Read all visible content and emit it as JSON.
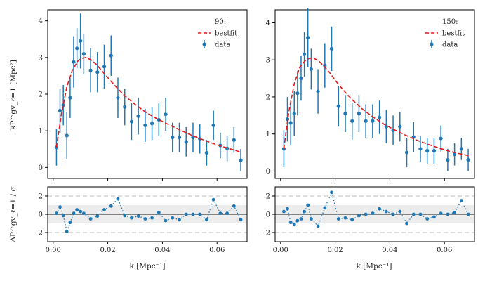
{
  "figure": {
    "ylabel_top": "kP^gv_ℓ=1 [Mpc²]",
    "ylabel_bottom": "ΔP^gv_ℓ=1 / σ",
    "xlabel": "k [Mpc⁻¹]"
  },
  "chart_data": [
    {
      "type": "scatter",
      "panel": "left-top",
      "legend_title": "90:",
      "legend": [
        "bestfit",
        "data"
      ],
      "legend_placement": "top-right",
      "xlim": [
        -0.002,
        0.071
      ],
      "ylim": [
        -0.3,
        4.3
      ],
      "xticks": [
        0.0,
        0.02,
        0.04,
        0.06
      ],
      "yticks": [
        0,
        1,
        2,
        3,
        4
      ],
      "series": [
        {
          "name": "data",
          "color": "#1f77b4",
          "x": [
            0.0012,
            0.0025,
            0.0037,
            0.005,
            0.0062,
            0.0075,
            0.0087,
            0.01,
            0.0112,
            0.0137,
            0.0162,
            0.0187,
            0.0212,
            0.0237,
            0.0262,
            0.0287,
            0.0312,
            0.0337,
            0.0362,
            0.0387,
            0.0412,
            0.0437,
            0.0462,
            0.0487,
            0.0512,
            0.0537,
            0.0562,
            0.0587,
            0.0612,
            0.0637,
            0.0662,
            0.0687
          ],
          "y": [
            0.55,
            1.55,
            1.7,
            0.87,
            1.9,
            2.88,
            3.25,
            3.45,
            3.1,
            2.65,
            2.6,
            2.75,
            3.05,
            1.9,
            1.65,
            1.25,
            1.4,
            1.15,
            1.2,
            1.3,
            1.45,
            0.82,
            0.82,
            0.7,
            0.82,
            0.78,
            0.4,
            1.15,
            0.6,
            0.52,
            0.75,
            0.2
          ],
          "yerr": [
            0.5,
            0.6,
            0.55,
            0.65,
            0.55,
            0.7,
            0.55,
            0.75,
            0.55,
            0.6,
            0.55,
            0.6,
            0.55,
            0.55,
            0.5,
            0.5,
            0.5,
            0.45,
            0.45,
            0.45,
            0.45,
            0.4,
            0.4,
            0.4,
            0.4,
            0.4,
            0.35,
            0.4,
            0.35,
            0.35,
            0.35,
            0.3
          ]
        },
        {
          "name": "bestfit",
          "color": "#e41a1c",
          "x": [
            0.0012,
            0.003,
            0.005,
            0.007,
            0.009,
            0.0105,
            0.012,
            0.014,
            0.016,
            0.018,
            0.02,
            0.023,
            0.026,
            0.03,
            0.034,
            0.038,
            0.042,
            0.046,
            0.05,
            0.054,
            0.058,
            0.062,
            0.066,
            0.0687
          ],
          "y": [
            0.55,
            1.45,
            2.2,
            2.65,
            2.9,
            2.98,
            3.0,
            2.93,
            2.8,
            2.62,
            2.45,
            2.2,
            1.97,
            1.72,
            1.5,
            1.33,
            1.18,
            1.04,
            0.9,
            0.78,
            0.67,
            0.57,
            0.48,
            0.42
          ]
        }
      ]
    },
    {
      "type": "line",
      "panel": "left-bottom",
      "xlim": [
        -0.002,
        0.071
      ],
      "ylim": [
        -3.0,
        3.0
      ],
      "yticks": [
        -2,
        0,
        2
      ],
      "xticks": [
        0.0,
        0.02,
        0.04,
        0.06
      ],
      "xticklabels": [
        "0.00",
        "0.02",
        "0.04",
        "0.06"
      ],
      "band": [
        -1,
        1
      ],
      "dashed_lines": [
        -2,
        2
      ],
      "series": [
        {
          "name": "residual",
          "color": "#1f77b4",
          "x": [
            0.0012,
            0.0025,
            0.0037,
            0.005,
            0.0062,
            0.0075,
            0.0087,
            0.01,
            0.0112,
            0.0137,
            0.0162,
            0.0187,
            0.0212,
            0.0237,
            0.0262,
            0.0287,
            0.0312,
            0.0337,
            0.0362,
            0.0387,
            0.0412,
            0.0437,
            0.0462,
            0.0487,
            0.0512,
            0.0537,
            0.0562,
            0.0587,
            0.0612,
            0.0637,
            0.0662,
            0.0687
          ],
          "y": [
            0.1,
            0.8,
            -0.15,
            -1.9,
            -0.9,
            0.1,
            0.5,
            0.3,
            0.1,
            -0.5,
            -0.2,
            0.5,
            0.9,
            1.7,
            -0.15,
            -0.4,
            -0.2,
            -0.5,
            -0.4,
            0.2,
            -0.7,
            -0.4,
            -0.6,
            0.0,
            0.0,
            0.0,
            -0.6,
            1.6,
            0.1,
            0.1,
            0.9,
            -0.6
          ]
        }
      ]
    },
    {
      "type": "scatter",
      "panel": "right-top",
      "legend_title": "150:",
      "legend": [
        "bestfit",
        "data"
      ],
      "legend_placement": "top-right",
      "xlim": [
        -0.002,
        0.071
      ],
      "ylim": [
        -0.2,
        4.35
      ],
      "xticks": [
        0.0,
        0.02,
        0.04,
        0.06
      ],
      "yticks": [
        0,
        1,
        2,
        3,
        4
      ],
      "series": [
        {
          "name": "data",
          "color": "#1f77b4",
          "x": [
            0.0012,
            0.0025,
            0.0037,
            0.005,
            0.0062,
            0.0075,
            0.0087,
            0.01,
            0.0112,
            0.0137,
            0.0162,
            0.0187,
            0.0212,
            0.0237,
            0.0262,
            0.0287,
            0.0312,
            0.0337,
            0.0362,
            0.0387,
            0.0412,
            0.0437,
            0.0462,
            0.0487,
            0.0512,
            0.0537,
            0.0562,
            0.0587,
            0.0612,
            0.0637,
            0.0662,
            0.0687
          ],
          "y": [
            0.6,
            1.4,
            1.3,
            1.55,
            2.1,
            2.5,
            3.15,
            3.6,
            2.75,
            2.15,
            2.85,
            3.3,
            1.75,
            1.55,
            1.35,
            1.55,
            1.35,
            1.35,
            1.45,
            1.2,
            1.1,
            1.2,
            0.5,
            0.92,
            0.6,
            0.55,
            0.55,
            0.88,
            0.3,
            0.45,
            0.6,
            0.3
          ],
          "yerr": [
            0.5,
            0.6,
            0.6,
            0.6,
            0.6,
            0.6,
            0.6,
            0.8,
            0.55,
            0.6,
            0.6,
            0.6,
            0.55,
            0.5,
            0.5,
            0.5,
            0.45,
            0.45,
            0.45,
            0.45,
            0.4,
            0.4,
            0.4,
            0.4,
            0.35,
            0.35,
            0.35,
            0.35,
            0.3,
            0.3,
            0.3,
            0.3
          ]
        },
        {
          "name": "bestfit",
          "color": "#e41a1c",
          "x": [
            0.0012,
            0.003,
            0.005,
            0.007,
            0.009,
            0.0105,
            0.012,
            0.014,
            0.016,
            0.018,
            0.02,
            0.023,
            0.026,
            0.03,
            0.034,
            0.038,
            0.042,
            0.046,
            0.05,
            0.054,
            0.058,
            0.062,
            0.066,
            0.0687
          ],
          "y": [
            0.6,
            1.6,
            2.35,
            2.8,
            2.98,
            3.04,
            3.05,
            2.97,
            2.82,
            2.65,
            2.45,
            2.18,
            1.94,
            1.67,
            1.45,
            1.26,
            1.1,
            0.96,
            0.83,
            0.72,
            0.62,
            0.53,
            0.46,
            0.42
          ]
        }
      ]
    },
    {
      "type": "line",
      "panel": "right-bottom",
      "xlim": [
        -0.002,
        0.071
      ],
      "ylim": [
        -3.0,
        3.0
      ],
      "yticks": [
        -2,
        0,
        2
      ],
      "xticks": [
        0.0,
        0.02,
        0.04,
        0.06
      ],
      "xticklabels": [
        "0.00",
        "0.02",
        "0.04",
        "0.06"
      ],
      "band": [
        -1,
        1
      ],
      "dashed_lines": [
        -2,
        2
      ],
      "series": [
        {
          "name": "residual",
          "color": "#1f77b4",
          "x": [
            0.0012,
            0.0025,
            0.0037,
            0.005,
            0.0062,
            0.0075,
            0.0087,
            0.01,
            0.0112,
            0.0137,
            0.0162,
            0.0187,
            0.0212,
            0.0237,
            0.0262,
            0.0287,
            0.0312,
            0.0337,
            0.0362,
            0.0387,
            0.0412,
            0.0437,
            0.0462,
            0.0487,
            0.0512,
            0.0537,
            0.0562,
            0.0587,
            0.0612,
            0.0637,
            0.0662,
            0.0687
          ],
          "y": [
            0.3,
            0.6,
            -0.9,
            -1.1,
            -0.7,
            -0.5,
            0.3,
            1.0,
            -0.5,
            -1.3,
            0.7,
            2.4,
            -0.5,
            -0.4,
            -0.6,
            -0.15,
            0.0,
            0.1,
            0.6,
            0.3,
            0.0,
            0.3,
            -1.0,
            0.0,
            0.0,
            -0.5,
            -0.3,
            0.1,
            0.0,
            0.2,
            1.5,
            0.0
          ]
        }
      ]
    }
  ]
}
